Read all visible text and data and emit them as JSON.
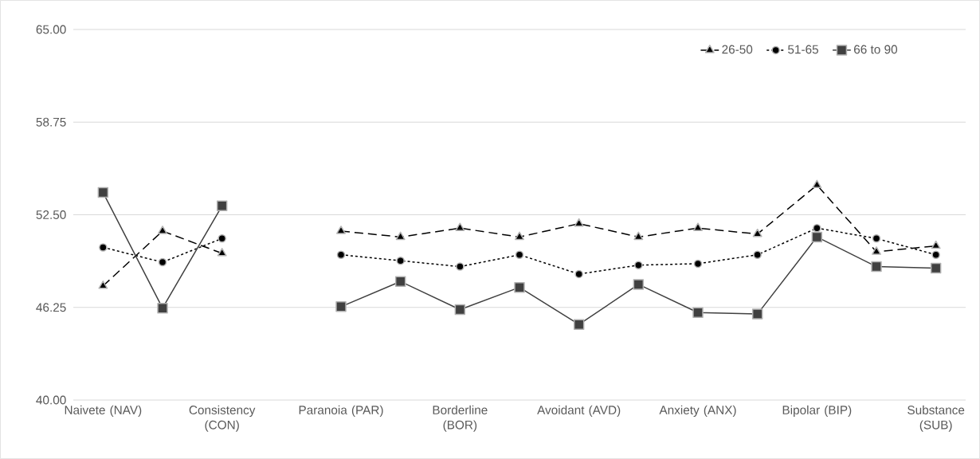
{
  "chart_data": {
    "type": "line",
    "categories": [
      "Naivete (NAV)",
      null,
      "Consistency (CON)",
      null,
      "Paranoia (PAR)",
      null,
      "Borderline (BOR)",
      null,
      "Avoidant (AVD)",
      null,
      "Anxiety (ANX)",
      null,
      "Bipolar (BIP)",
      null,
      "Substance (SUB)"
    ],
    "series": [
      {
        "name": "26-50",
        "color": "#000000",
        "marker": "triangle",
        "line_style": "dashed",
        "values": [
          47.7,
          51.4,
          49.9,
          null,
          51.4,
          51.0,
          51.6,
          51.0,
          51.9,
          51.0,
          51.6,
          51.2,
          54.5,
          50.0,
          50.4
        ]
      },
      {
        "name": "51-65",
        "color": "#000000",
        "marker": "circle",
        "line_style": "dotted",
        "values": [
          50.3,
          49.3,
          50.9,
          null,
          49.8,
          49.4,
          49.0,
          49.8,
          48.5,
          49.1,
          49.2,
          49.8,
          51.6,
          50.9,
          49.8
        ]
      },
      {
        "name": "66 to 90",
        "color": "#404040",
        "marker": "square",
        "line_style": "solid",
        "values": [
          54.0,
          46.2,
          53.1,
          null,
          46.3,
          48.0,
          46.1,
          47.6,
          45.1,
          47.8,
          45.9,
          45.8,
          51.0,
          49.0,
          48.9
        ]
      }
    ],
    "ylim": [
      40,
      65
    ],
    "yticks": [
      {
        "value": 40,
        "label": "40.00"
      },
      {
        "value": 46.25,
        "label": "46.25"
      },
      {
        "value": 52.5,
        "label": "52.50"
      },
      {
        "value": 58.75,
        "label": "58.75"
      },
      {
        "value": 65,
        "label": "65.00"
      }
    ],
    "grid": "y",
    "legend": "top right"
  }
}
